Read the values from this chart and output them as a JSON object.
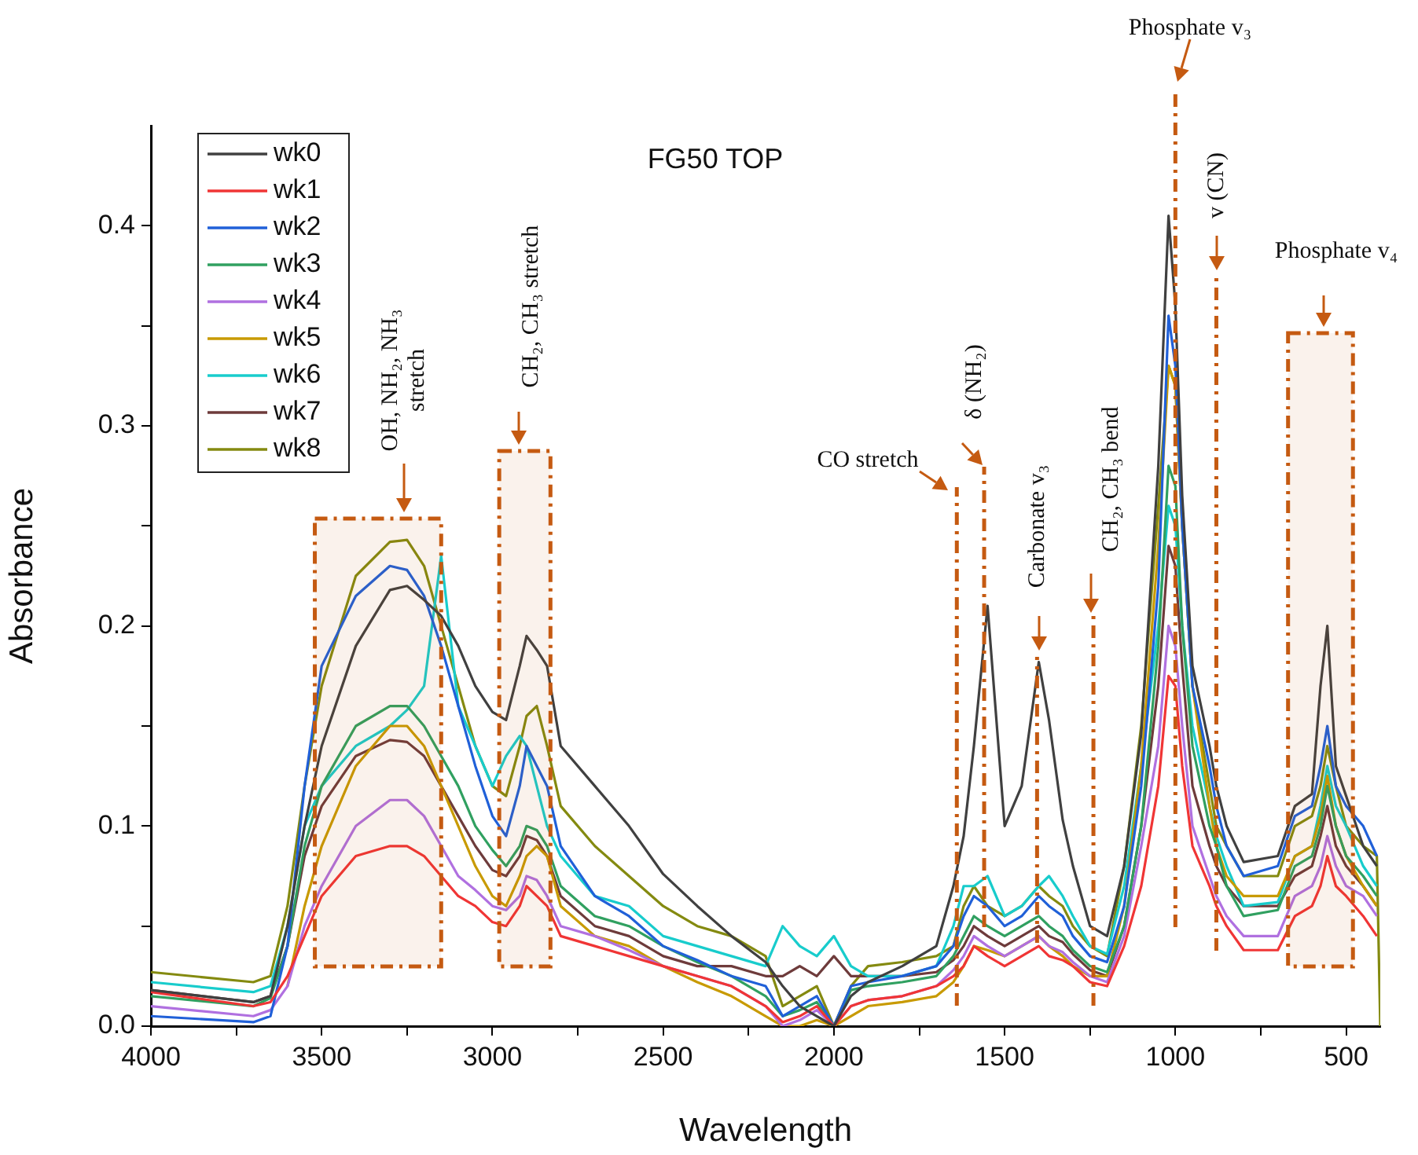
{
  "chart_data": {
    "type": "line",
    "title": "FG50 TOP",
    "xlabel": "Wavelength",
    "ylabel": "Absorbance",
    "x": [
      4000,
      3700,
      3650,
      3600,
      3550,
      3500,
      3400,
      3300,
      3250,
      3200,
      3150,
      3100,
      3050,
      3000,
      2960,
      2920,
      2900,
      2870,
      2840,
      2800,
      2700,
      2600,
      2500,
      2400,
      2300,
      2200,
      2150,
      2100,
      2050,
      2000,
      1950,
      1900,
      1800,
      1700,
      1650,
      1620,
      1590,
      1550,
      1500,
      1450,
      1400,
      1370,
      1330,
      1300,
      1250,
      1200,
      1150,
      1100,
      1050,
      1020,
      1000,
      980,
      950,
      900,
      880,
      850,
      800,
      700,
      650,
      600,
      575,
      555,
      530,
      500,
      450,
      410,
      400
    ],
    "series": [
      {
        "name": "wk0",
        "color": "#404040",
        "values": [
          0.018,
          0.012,
          0.015,
          0.05,
          0.1,
          0.14,
          0.19,
          0.218,
          0.22,
          0.213,
          0.205,
          0.19,
          0.17,
          0.157,
          0.153,
          0.18,
          0.195,
          0.188,
          0.18,
          0.14,
          0.12,
          0.1,
          0.076,
          0.06,
          0.045,
          0.032,
          0.02,
          0.01,
          0.005,
          0,
          0.015,
          0.022,
          0.03,
          0.04,
          0.07,
          0.095,
          0.14,
          0.21,
          0.1,
          0.12,
          0.182,
          0.153,
          0.103,
          0.08,
          0.05,
          0.045,
          0.08,
          0.146,
          0.28,
          0.405,
          0.36,
          0.265,
          0.18,
          0.14,
          0.12,
          0.1,
          0.082,
          0.085,
          0.11,
          0.116,
          0.17,
          0.2,
          0.13,
          0.115,
          0.09,
          0.08,
          null
        ]
      },
      {
        "name": "wk1",
        "color": "#f03535",
        "values": [
          0.017,
          0.01,
          0.012,
          0.025,
          0.045,
          0.065,
          0.085,
          0.09,
          0.09,
          0.085,
          0.075,
          0.065,
          0.06,
          0.052,
          0.05,
          0.06,
          0.07,
          0.065,
          0.06,
          0.045,
          0.04,
          0.035,
          0.03,
          0.025,
          0.02,
          0.01,
          0.002,
          0.005,
          0.01,
          0,
          0.01,
          0.013,
          0.015,
          0.02,
          0.025,
          0.03,
          0.04,
          0.035,
          0.03,
          0.035,
          0.04,
          0.035,
          0.033,
          0.03,
          0.022,
          0.02,
          0.04,
          0.07,
          0.12,
          0.175,
          0.17,
          0.13,
          0.09,
          0.07,
          0.06,
          0.05,
          0.038,
          0.038,
          0.055,
          0.06,
          0.07,
          0.085,
          0.07,
          0.065,
          0.055,
          0.045,
          null
        ]
      },
      {
        "name": "wk2",
        "color": "#2060d8",
        "values": [
          0.005,
          0.002,
          0.005,
          0.04,
          0.12,
          0.18,
          0.215,
          0.23,
          0.228,
          0.215,
          0.19,
          0.16,
          0.13,
          0.105,
          0.095,
          0.12,
          0.14,
          0.13,
          0.12,
          0.09,
          0.065,
          0.055,
          0.04,
          0.033,
          0.025,
          0.02,
          0.005,
          0.01,
          0.015,
          0,
          0.02,
          0.022,
          0.025,
          0.03,
          0.04,
          0.055,
          0.065,
          0.06,
          0.05,
          0.055,
          0.065,
          0.06,
          0.055,
          0.045,
          0.035,
          0.032,
          0.06,
          0.12,
          0.22,
          0.355,
          0.33,
          0.25,
          0.17,
          0.13,
          0.11,
          0.09,
          0.075,
          0.08,
          0.105,
          0.11,
          0.13,
          0.15,
          0.12,
          0.11,
          0.1,
          0.085,
          null
        ]
      },
      {
        "name": "wk3",
        "color": "#30a060",
        "values": [
          0.015,
          0.01,
          0.014,
          0.04,
          0.09,
          0.12,
          0.15,
          0.16,
          0.16,
          0.15,
          0.135,
          0.12,
          0.1,
          0.088,
          0.08,
          0.09,
          0.1,
          0.098,
          0.09,
          0.07,
          0.055,
          0.05,
          0.04,
          0.032,
          0.025,
          0.015,
          0.005,
          0.008,
          0.012,
          0,
          0.018,
          0.02,
          0.022,
          0.025,
          0.035,
          0.045,
          0.055,
          0.05,
          0.045,
          0.05,
          0.055,
          0.05,
          0.045,
          0.038,
          0.03,
          0.027,
          0.05,
          0.1,
          0.19,
          0.28,
          0.27,
          0.2,
          0.14,
          0.1,
          0.09,
          0.07,
          0.055,
          0.058,
          0.08,
          0.085,
          0.1,
          0.12,
          0.1,
          0.085,
          0.075,
          0.065,
          null
        ]
      },
      {
        "name": "wk4",
        "color": "#b070e0",
        "values": [
          0.01,
          0.005,
          0.008,
          0.02,
          0.05,
          0.07,
          0.1,
          0.113,
          0.113,
          0.105,
          0.09,
          0.075,
          0.068,
          0.06,
          0.058,
          0.065,
          0.075,
          0.073,
          0.065,
          0.05,
          0.045,
          0.038,
          0.03,
          0.025,
          0.02,
          0.01,
          0,
          0.003,
          0.008,
          0,
          0.01,
          0.013,
          0.015,
          0.02,
          0.028,
          0.035,
          0.045,
          0.04,
          0.035,
          0.04,
          0.045,
          0.04,
          0.037,
          0.032,
          0.025,
          0.022,
          0.045,
          0.09,
          0.14,
          0.2,
          0.19,
          0.15,
          0.1,
          0.075,
          0.065,
          0.055,
          0.045,
          0.045,
          0.065,
          0.07,
          0.08,
          0.095,
          0.08,
          0.07,
          0.065,
          0.055,
          null
        ]
      },
      {
        "name": "wk5",
        "color": "#c89a00",
        "values": [
          null,
          null,
          null,
          0.02,
          0.06,
          0.09,
          0.13,
          0.15,
          0.15,
          0.14,
          0.12,
          0.1,
          0.08,
          0.065,
          0.06,
          0.075,
          0.085,
          0.09,
          0.085,
          0.06,
          0.045,
          0.04,
          0.03,
          0.022,
          0.015,
          0.005,
          0,
          0,
          0.003,
          0,
          0.005,
          0.01,
          0.012,
          0.015,
          0.022,
          0.03,
          0.04,
          0.038,
          0.035,
          0.04,
          0.045,
          0.04,
          0.035,
          0.03,
          0.025,
          0.025,
          0.06,
          0.13,
          0.24,
          0.33,
          0.32,
          0.25,
          0.17,
          0.11,
          0.09,
          0.075,
          0.065,
          0.065,
          0.085,
          0.09,
          0.105,
          0.125,
          0.1,
          0.085,
          0.07,
          0.06,
          null
        ]
      },
      {
        "name": "wk6",
        "color": "#18cccc",
        "values": [
          0.022,
          0.017,
          0.02,
          0.05,
          0.1,
          0.12,
          0.14,
          0.15,
          0.158,
          0.17,
          0.235,
          0.16,
          0.14,
          0.12,
          0.135,
          0.145,
          0.14,
          0.12,
          0.1,
          0.085,
          0.065,
          0.06,
          0.045,
          0.04,
          0.035,
          0.03,
          0.05,
          0.04,
          0.035,
          0.045,
          0.03,
          0.025,
          0.025,
          0.03,
          0.05,
          0.07,
          0.07,
          0.075,
          0.055,
          0.06,
          0.07,
          0.075,
          0.065,
          0.055,
          0.04,
          0.036,
          0.07,
          0.13,
          0.2,
          0.26,
          0.25,
          0.2,
          0.15,
          0.11,
          0.095,
          0.08,
          0.06,
          0.062,
          0.085,
          0.09,
          0.11,
          0.13,
          0.11,
          0.1,
          0.08,
          0.07,
          null
        ]
      },
      {
        "name": "wk7",
        "color": "#6e3b3b",
        "values": [
          0.018,
          0.012,
          0.015,
          0.04,
          0.085,
          0.11,
          0.135,
          0.143,
          0.142,
          0.135,
          0.12,
          0.105,
          0.09,
          0.078,
          0.075,
          0.085,
          0.095,
          0.093,
          0.085,
          0.065,
          0.05,
          0.045,
          0.035,
          0.03,
          0.03,
          0.025,
          0.025,
          0.03,
          0.025,
          0.035,
          0.025,
          0.025,
          0.025,
          0.027,
          0.033,
          0.04,
          0.05,
          0.045,
          0.04,
          0.045,
          0.05,
          0.045,
          0.042,
          0.036,
          0.028,
          0.025,
          0.05,
          0.1,
          0.17,
          0.24,
          0.23,
          0.18,
          0.12,
          0.09,
          0.08,
          0.07,
          0.06,
          0.06,
          0.075,
          0.08,
          0.095,
          0.11,
          0.09,
          0.08,
          0.07,
          0.06,
          null
        ]
      },
      {
        "name": "wk8",
        "color": "#848a10",
        "values": [
          0.027,
          0.022,
          0.025,
          0.06,
          0.12,
          0.17,
          0.225,
          0.242,
          0.243,
          0.23,
          0.2,
          0.17,
          0.14,
          0.12,
          0.115,
          0.14,
          0.155,
          0.16,
          0.14,
          0.11,
          0.09,
          0.075,
          0.06,
          0.05,
          0.045,
          0.035,
          0.01,
          0.015,
          0.02,
          0,
          0.02,
          0.03,
          0.032,
          0.035,
          0.04,
          0.06,
          0.07,
          0.06,
          0.055,
          0.06,
          0.07,
          0.065,
          0.06,
          0.05,
          0.04,
          0.035,
          0.08,
          0.15,
          0.26,
          0.33,
          0.32,
          0.25,
          0.17,
          0.12,
          0.1,
          0.09,
          0.075,
          0.075,
          0.1,
          0.105,
          0.12,
          0.14,
          0.12,
          0.1,
          0.09,
          0.085,
          0
        ]
      }
    ],
    "xlim": [
      4000,
      400
    ],
    "xticks": [
      4000,
      {
        "value": 3750,
        "label": null
      },
      3500,
      {
        "value": 3250,
        "label": null
      },
      3000,
      {
        "value": 2750,
        "label": null
      },
      2500,
      {
        "value": 2250,
        "label": null
      },
      2000,
      {
        "value": 1750,
        "label": null
      },
      1500,
      {
        "value": 1250,
        "label": null
      },
      1000,
      {
        "value": 750,
        "label": null
      },
      500
    ],
    "ylim": [
      0,
      0.45
    ],
    "yticks": [
      {
        "value": 0,
        "label": "0.0"
      },
      {
        "value": 0.05,
        "label": null
      },
      {
        "value": 0.1,
        "label": "0.1"
      },
      {
        "value": 0.15,
        "label": null
      },
      {
        "value": 0.2,
        "label": "0.2"
      },
      {
        "value": 0.25,
        "label": null
      },
      {
        "value": 0.3,
        "label": "0.3"
      },
      {
        "value": 0.35,
        "label": null
      },
      {
        "value": 0.4,
        "label": "0.4"
      }
    ],
    "ref_lines": [
      {
        "axis": "x",
        "value": 1640,
        "label": "CO stretch",
        "color": "#c55a11"
      },
      {
        "axis": "x",
        "value": 1560,
        "label": "δ (NH₂)",
        "color": "#c55a11"
      },
      {
        "axis": "x",
        "value": 1405,
        "label": "Carbonate v₃",
        "color": "#c55a11"
      },
      {
        "axis": "x",
        "value": 1240,
        "label": "CH₂, CH₃ bend",
        "color": "#c55a11"
      },
      {
        "axis": "x",
        "value": 1000,
        "label": "Phosphate v₃",
        "color": "#c55a11"
      },
      {
        "axis": "x",
        "value": 880,
        "label": "v (CN)",
        "color": "#c55a11"
      }
    ],
    "bands": [
      {
        "axis": "x",
        "from": 3520,
        "to": 3150,
        "label": "OH, NH₂, NH₃ stretch",
        "color": "#c55a11"
      },
      {
        "axis": "x",
        "from": 2980,
        "to": 2830,
        "label": "CH₂, CH₃ stretch",
        "color": "#c55a11"
      },
      {
        "axis": "x",
        "from": 670,
        "to": 480,
        "label": "Phosphate v₄",
        "color": "#c55a11"
      }
    ],
    "grid": false,
    "legend": "top left"
  }
}
